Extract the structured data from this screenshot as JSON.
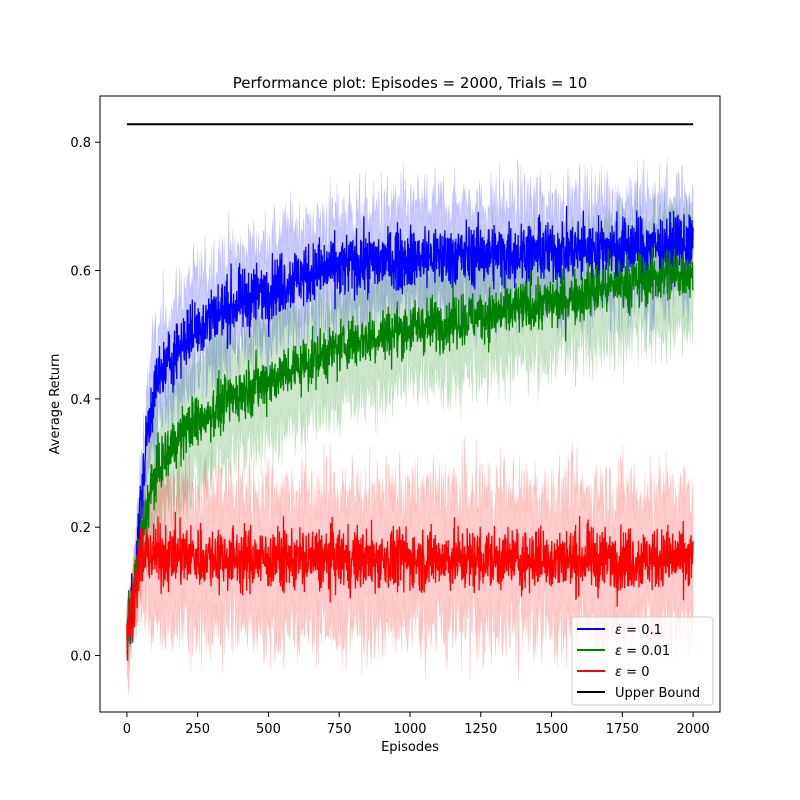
{
  "chart_data": {
    "type": "line",
    "title": "Performance plot: Episodes = 2000, Trials = 10",
    "xlabel": "Episodes",
    "ylabel": "Average Return",
    "xlim": [
      -95,
      2095
    ],
    "ylim": [
      -0.088,
      0.872
    ],
    "xticks": [
      0,
      250,
      500,
      750,
      1000,
      1250,
      1500,
      1750,
      2000
    ],
    "yticks": [
      0.0,
      0.2,
      0.4,
      0.6,
      0.8
    ],
    "ytick_labels": [
      "0.0",
      "0.2",
      "0.4",
      "0.6",
      "0.8"
    ],
    "grid": false,
    "legend_position": "lower right",
    "series": [
      {
        "name": "ε = 0.1",
        "name_prefix": "ε",
        "name_suffix": " = 0.1",
        "color": "#0000ff",
        "band_color": "#0000ff",
        "noise": 0.035,
        "band_halfwidth": 0.075,
        "x": [
          0,
          25,
          50,
          75,
          100,
          150,
          200,
          300,
          400,
          500,
          600,
          700,
          800,
          1000,
          1250,
          1500,
          1750,
          2000
        ],
        "y": [
          0.03,
          0.1,
          0.24,
          0.36,
          0.42,
          0.46,
          0.49,
          0.53,
          0.55,
          0.57,
          0.59,
          0.6,
          0.61,
          0.62,
          0.625,
          0.63,
          0.635,
          0.64
        ]
      },
      {
        "name": "ε = 0.01",
        "name_prefix": "ε",
        "name_suffix": " = 0.01",
        "color": "#008000",
        "band_color": "#008000",
        "noise": 0.03,
        "band_halfwidth": 0.085,
        "x": [
          0,
          25,
          50,
          75,
          100,
          150,
          200,
          300,
          400,
          500,
          600,
          700,
          800,
          1000,
          1250,
          1500,
          1750,
          2000
        ],
        "y": [
          0.03,
          0.1,
          0.18,
          0.24,
          0.28,
          0.32,
          0.35,
          0.38,
          0.41,
          0.43,
          0.45,
          0.47,
          0.49,
          0.51,
          0.53,
          0.55,
          0.58,
          0.6
        ]
      },
      {
        "name": "ε = 0",
        "name_prefix": "ε",
        "name_suffix": " = 0",
        "color": "#ff0000",
        "band_color": "#ff0000",
        "noise": 0.035,
        "band_halfwidth": 0.1,
        "x": [
          0,
          25,
          50,
          75,
          100,
          200,
          500,
          1000,
          1500,
          2000
        ],
        "y": [
          0.02,
          0.1,
          0.15,
          0.16,
          0.155,
          0.155,
          0.15,
          0.15,
          0.15,
          0.15
        ]
      },
      {
        "name": "Upper Bound",
        "color": "#000000",
        "x": [
          0,
          2000
        ],
        "y": [
          0.828,
          0.828
        ]
      }
    ]
  }
}
